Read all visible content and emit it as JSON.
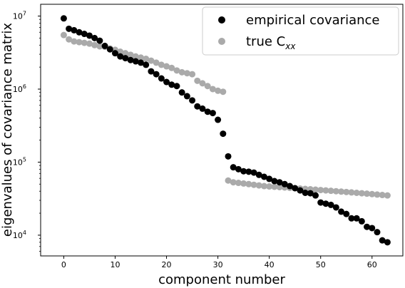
{
  "chart_data": {
    "type": "scatter",
    "xlabel": "component number",
    "ylabel": "eigenvalues of covariance matrix",
    "xlim": [
      -4.5,
      66
    ],
    "ylim": [
      5200,
      14500000
    ],
    "yscale": "log",
    "grid": false,
    "legend_placement": "top-right",
    "x_ticks": [
      0,
      10,
      20,
      30,
      40,
      50,
      60
    ],
    "x_tick_labels": [
      "0",
      "10",
      "20",
      "30",
      "40",
      "50",
      "60"
    ],
    "y_ticks": [
      10000,
      100000,
      1000000,
      10000000
    ],
    "y_tick_labels": [
      {
        "base": "10",
        "exp": "4"
      },
      {
        "base": "10",
        "exp": "5"
      },
      {
        "base": "10",
        "exp": "6"
      },
      {
        "base": "10",
        "exp": "7"
      }
    ],
    "series": [
      {
        "name": "true C",
        "name_subscript": "xx",
        "color": "#aaaaaa",
        "x": [
          0,
          1,
          2,
          3,
          4,
          5,
          6,
          7,
          8,
          9,
          10,
          11,
          12,
          13,
          14,
          15,
          16,
          17,
          18,
          19,
          20,
          21,
          22,
          23,
          24,
          25,
          26,
          27,
          28,
          29,
          30,
          31,
          32,
          33,
          34,
          35,
          36,
          37,
          38,
          39,
          40,
          41,
          42,
          43,
          44,
          45,
          46,
          47,
          48,
          49,
          50,
          51,
          52,
          53,
          54,
          55,
          56,
          57,
          58,
          59,
          60,
          61,
          62,
          63
        ],
        "y": [
          5500000,
          4800000,
          4500000,
          4400000,
          4300000,
          4200000,
          4000000,
          3850000,
          3800000,
          3600000,
          3450000,
          3250000,
          3100000,
          2950000,
          2800000,
          2700000,
          2600000,
          2450000,
          2300000,
          2150000,
          2050000,
          1950000,
          1800000,
          1700000,
          1650000,
          1600000,
          1300000,
          1200000,
          1100000,
          1000000,
          950000,
          920000,
          56000,
          53000,
          52000,
          51000,
          50000,
          49000,
          48000,
          47000,
          46500,
          46000,
          45500,
          45000,
          44500,
          44000,
          43500,
          43000,
          42500,
          42000,
          41500,
          41000,
          40500,
          40000,
          39500,
          39000,
          38500,
          38000,
          37500,
          37000,
          36500,
          36000,
          35500,
          35000
        ]
      },
      {
        "name": "empirical covariance",
        "color": "#000000",
        "x": [
          0,
          1,
          2,
          3,
          4,
          5,
          6,
          7,
          8,
          9,
          10,
          11,
          12,
          13,
          14,
          15,
          16,
          17,
          18,
          19,
          20,
          21,
          22,
          23,
          24,
          25,
          26,
          27,
          28,
          29,
          30,
          31,
          32,
          33,
          34,
          35,
          36,
          37,
          38,
          39,
          40,
          41,
          42,
          43,
          44,
          45,
          46,
          47,
          48,
          49,
          50,
          51,
          52,
          53,
          54,
          55,
          56,
          57,
          58,
          59,
          60,
          61,
          62,
          63
        ],
        "y": [
          9300000,
          6700000,
          6400000,
          6000000,
          5700000,
          5400000,
          5000000,
          4600000,
          3900000,
          3500000,
          3100000,
          2800000,
          2650000,
          2500000,
          2400000,
          2300000,
          2150000,
          1750000,
          1600000,
          1400000,
          1250000,
          1150000,
          1100000,
          900000,
          800000,
          700000,
          580000,
          540000,
          490000,
          470000,
          380000,
          245000,
          120000,
          85000,
          80000,
          75000,
          74000,
          72000,
          67000,
          63000,
          59000,
          55000,
          53000,
          50000,
          47000,
          44000,
          41000,
          38000,
          37500,
          35000,
          28000,
          27000,
          26000,
          24000,
          21000,
          19500,
          17000,
          17000,
          15500,
          13000,
          12500,
          11000,
          8500,
          8000
        ]
      }
    ]
  }
}
